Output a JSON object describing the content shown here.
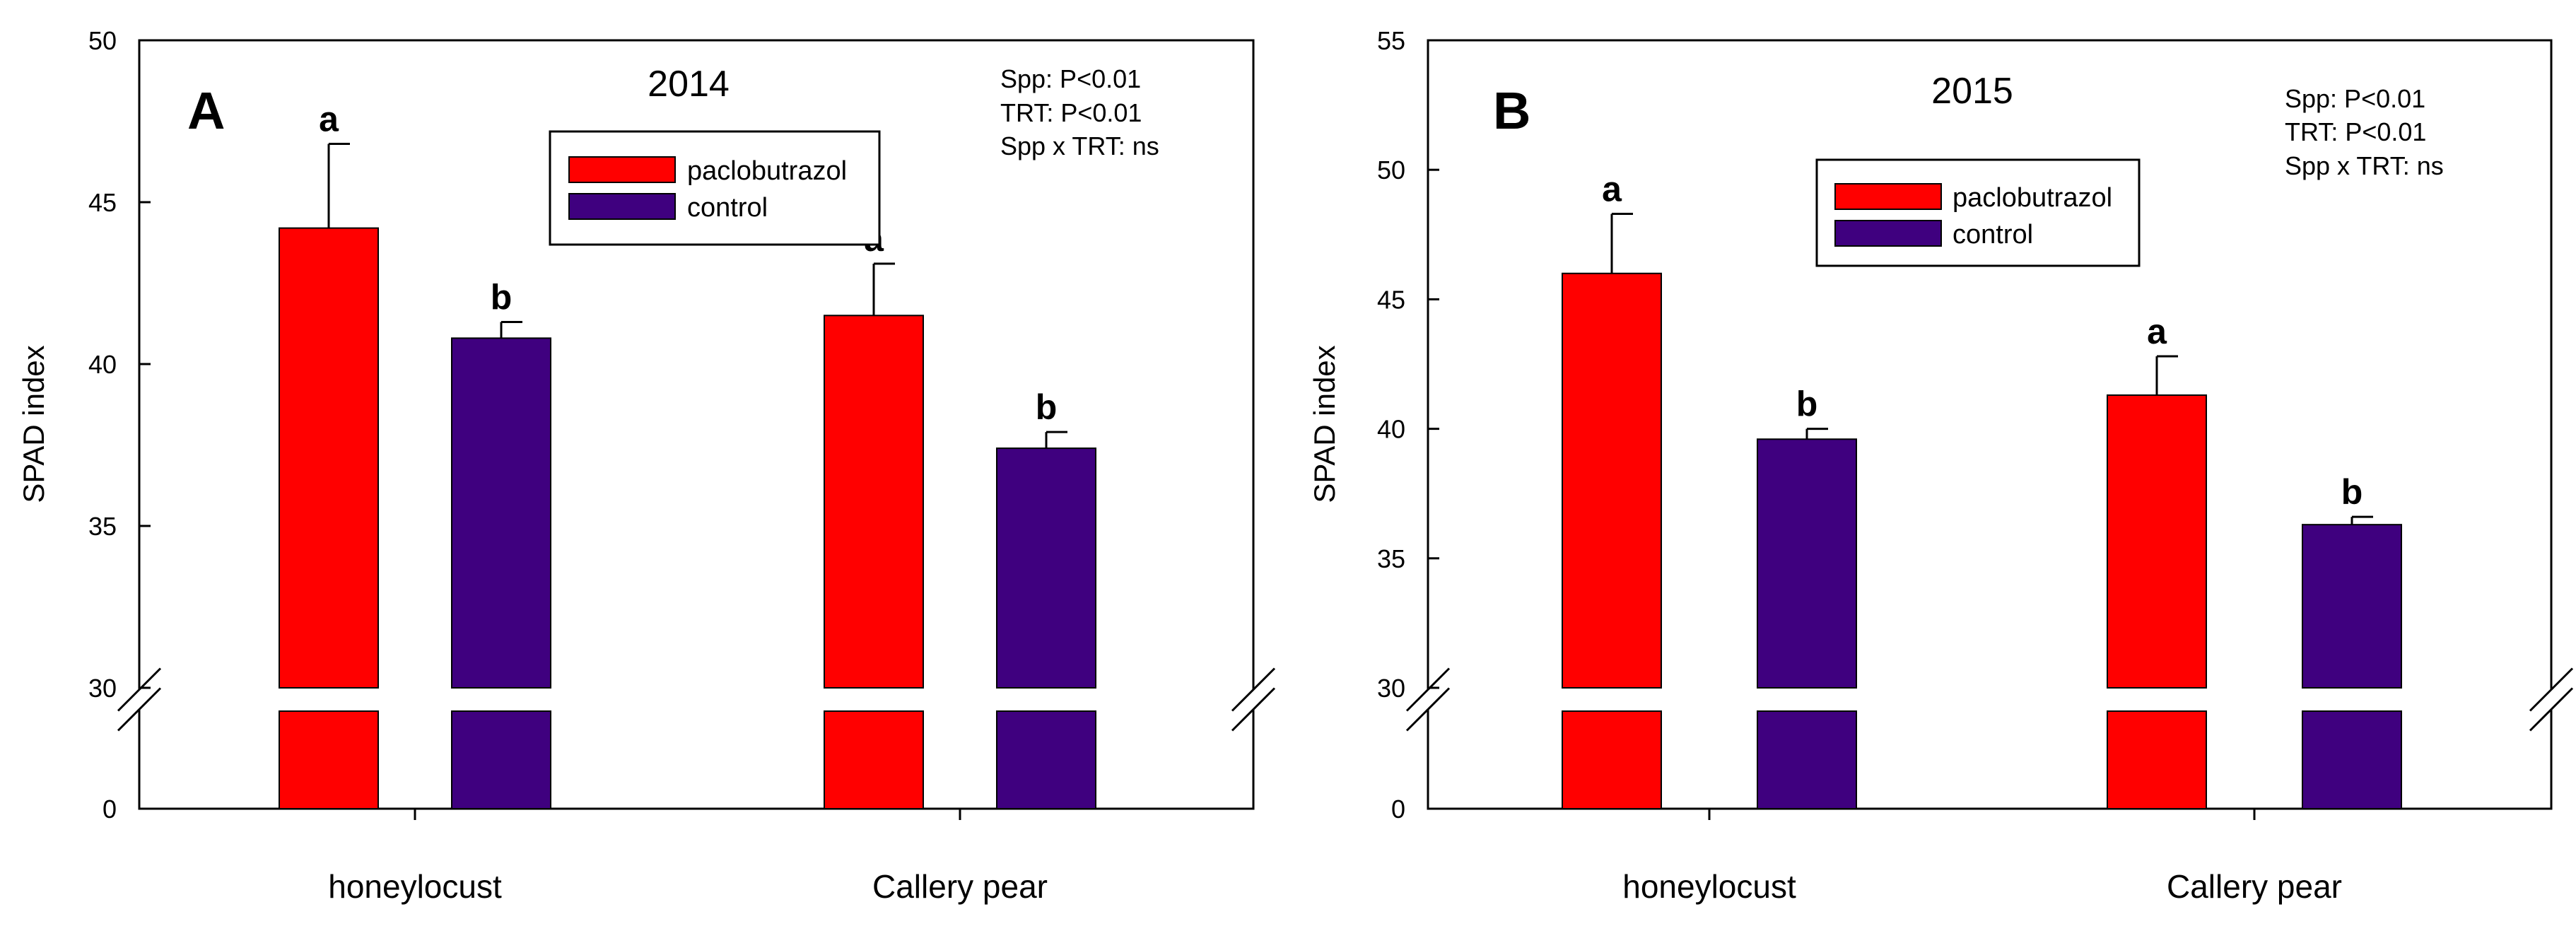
{
  "colors": {
    "paclobutrazol": "#ff0000",
    "control": "#3f007f",
    "axis": "#000000",
    "background": "#ffffff"
  },
  "legend": {
    "series": [
      "paclobutrazol",
      "control"
    ]
  },
  "chart_data": [
    {
      "type": "bar",
      "panel": "A",
      "title": "2014",
      "ylabel": "SPAD index",
      "xlabel": "",
      "categories": [
        "honeylocust",
        "Callery pear"
      ],
      "series": [
        {
          "name": "paclobutrazol",
          "values": [
            44.2,
            41.5
          ],
          "errors": [
            2.6,
            1.6
          ],
          "letters": [
            "a",
            "a"
          ]
        },
        {
          "name": "control",
          "values": [
            40.8,
            37.4
          ],
          "errors": [
            0.5,
            0.5
          ],
          "letters": [
            "b",
            "b"
          ]
        }
      ],
      "yticks": [
        "0",
        "30",
        "35",
        "40",
        "45",
        "50"
      ],
      "ylim_upper": [
        30,
        50
      ],
      "ylim_lower": [
        0,
        30
      ],
      "axis_break": true,
      "stats": [
        "Spp: P<0.01",
        "TRT: P<0.01",
        "Spp x TRT: ns"
      ],
      "legend_position": "top-center"
    },
    {
      "type": "bar",
      "panel": "B",
      "title": "2015",
      "ylabel": "SPAD index",
      "xlabel": "",
      "categories": [
        "honeylocust",
        "Callery pear"
      ],
      "series": [
        {
          "name": "paclobutrazol",
          "values": [
            46.0,
            41.3
          ],
          "errors": [
            2.3,
            1.5
          ],
          "letters": [
            "a",
            "a"
          ]
        },
        {
          "name": "control",
          "values": [
            39.6,
            36.3
          ],
          "errors": [
            0.4,
            0.3
          ],
          "letters": [
            "b",
            "b"
          ]
        }
      ],
      "yticks": [
        "0",
        "30",
        "35",
        "40",
        "45",
        "50",
        "55"
      ],
      "ylim_upper": [
        30,
        55
      ],
      "ylim_lower": [
        0,
        30
      ],
      "axis_break": true,
      "stats": [
        "Spp: P<0.01",
        "TRT: P<0.01",
        "Spp x TRT: ns"
      ],
      "legend_position": "top-center"
    }
  ]
}
